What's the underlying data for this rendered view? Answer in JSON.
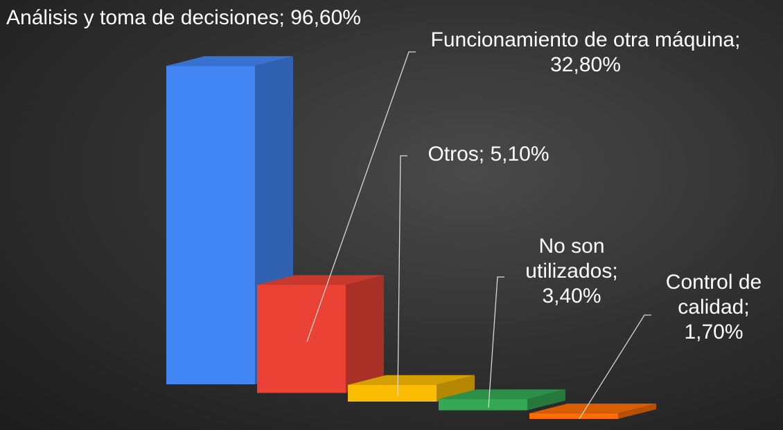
{
  "chart_data": {
    "type": "bar3d",
    "values": [
      96.6,
      32.8,
      5.1,
      3.4,
      1.7
    ],
    "value_labels": [
      "Análisis y toma de decisiones; 96,60%",
      "Funcionamiento de otra máquina; 32,80%",
      "Otros; 5,10%",
      "No son utilizados; 3,40%",
      "Control de calidad; 1,70%"
    ],
    "colors": [
      "#4285f4",
      "#ea4335",
      "#fbbc04",
      "#34a853",
      "#ff6d01"
    ]
  }
}
